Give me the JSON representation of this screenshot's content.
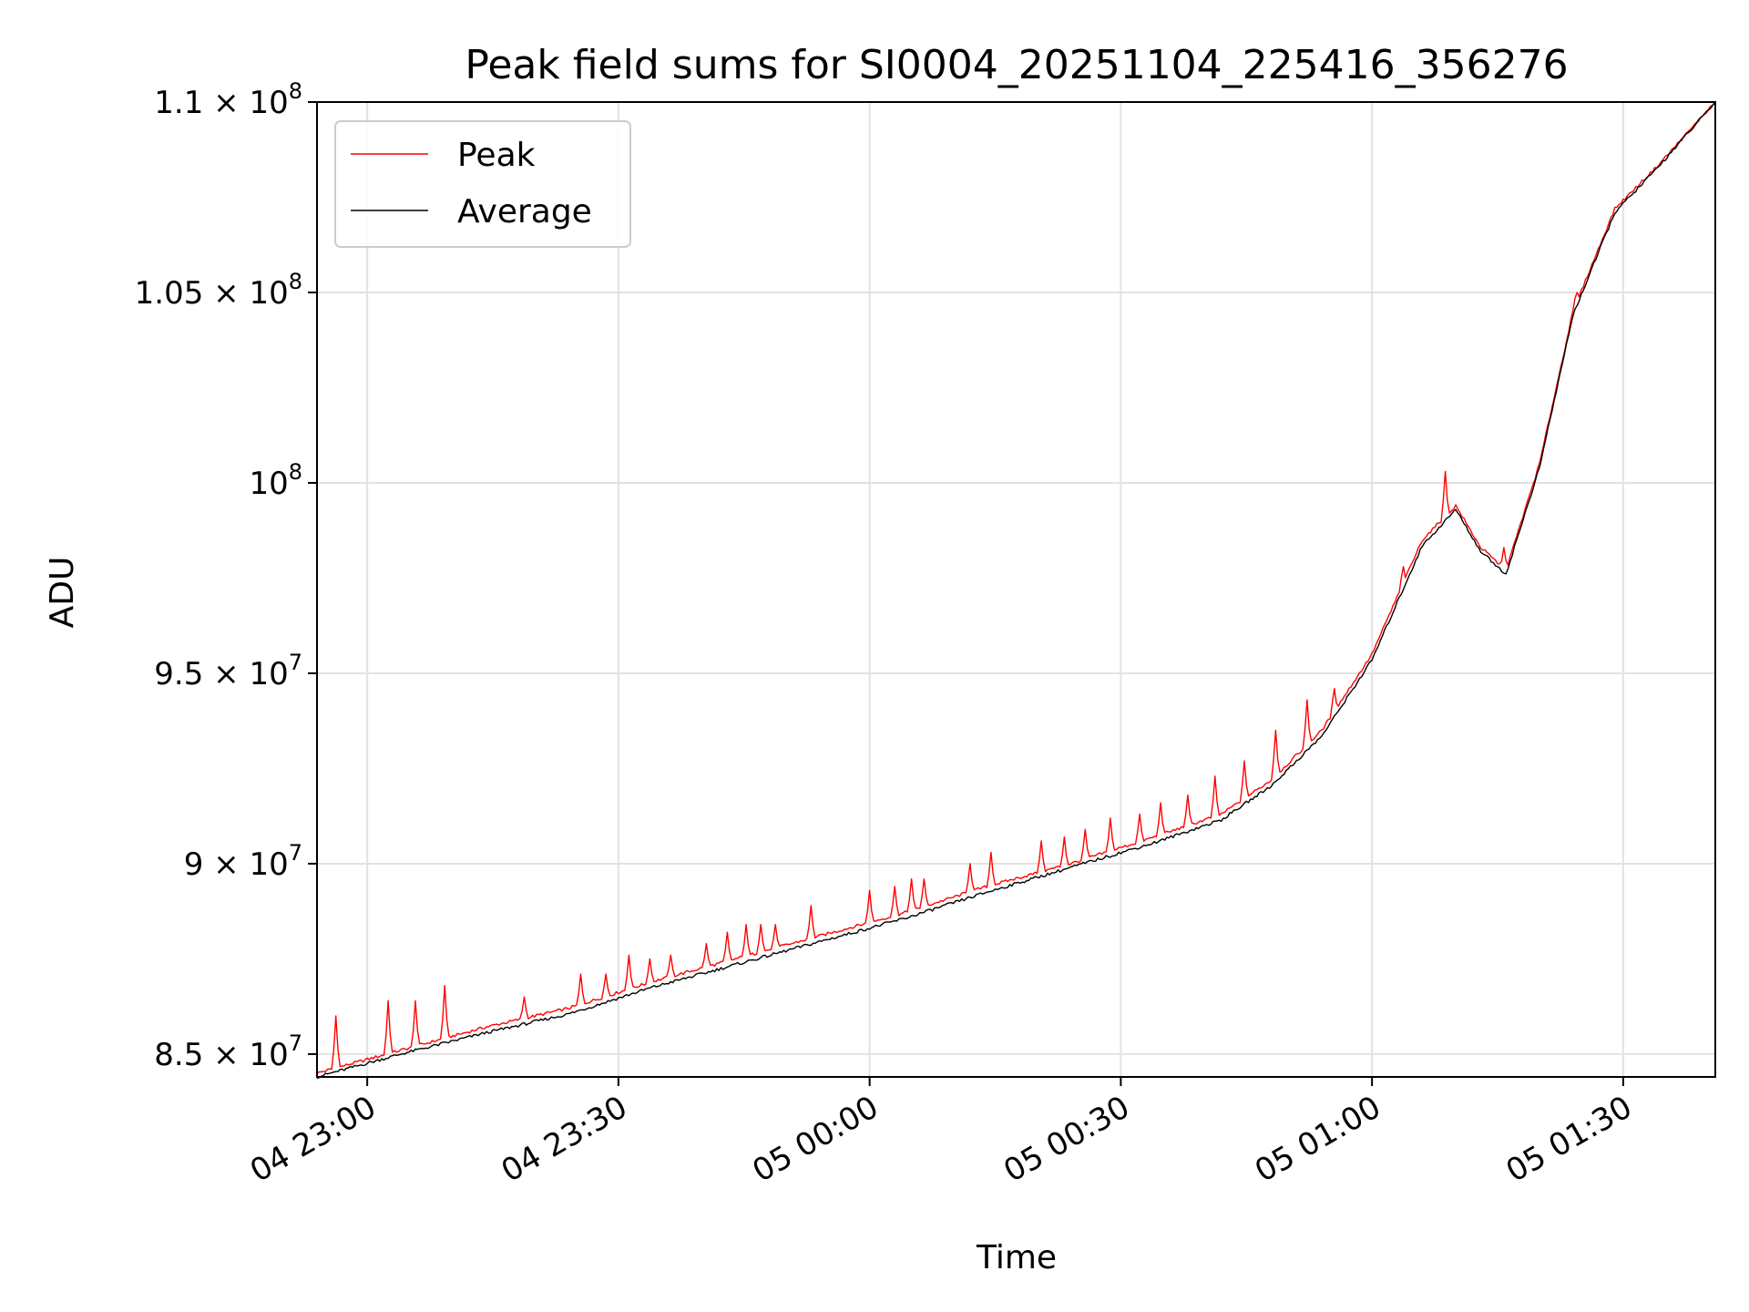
{
  "chart_data": {
    "type": "line",
    "title": "Peak field sums for SI0004_20251104_225416_356276",
    "xlabel": "Time",
    "ylabel": "ADU",
    "x_unit": "minutes after 04 22:54",
    "xlim": [
      0,
      167
    ],
    "ylim": [
      84400000,
      110000000
    ],
    "grid": true,
    "legend_position": "top-left",
    "x_ticks": [
      {
        "value": 6,
        "label": "04 23:00"
      },
      {
        "value": 36,
        "label": "04 23:30"
      },
      {
        "value": 66,
        "label": "05 00:00"
      },
      {
        "value": 96,
        "label": "05 00:30"
      },
      {
        "value": 126,
        "label": "05 01:00"
      },
      {
        "value": 156,
        "label": "05 01:30"
      }
    ],
    "y_ticks": [
      {
        "value": 85000000,
        "label": "8.5 × 10",
        "exp": "7"
      },
      {
        "value": 90000000,
        "label": "9 × 10",
        "exp": "7"
      },
      {
        "value": 95000000,
        "label": "9.5 × 10",
        "exp": "7"
      },
      {
        "value": 100000000,
        "label": "10",
        "exp": "8"
      },
      {
        "value": 105000000,
        "label": "1.05 × 10",
        "exp": "8"
      },
      {
        "value": 110000000,
        "label": "1.1 × 10",
        "exp": "8"
      }
    ],
    "series": [
      {
        "name": "Peak",
        "color": "#ff0000",
        "x": [
          0,
          10,
          20,
          30,
          40,
          50,
          60,
          70,
          80,
          90,
          100,
          108,
          114,
          120,
          126,
          132,
          136,
          139,
          142,
          146,
          150,
          155,
          160,
          167
        ],
        "y": [
          84500000,
          85100000,
          85700000,
          86200000,
          86900000,
          87500000,
          88100000,
          88700000,
          89400000,
          90000000,
          90700000,
          91300000,
          92200000,
          93500000,
          95500000,
          98500000,
          99400000,
          98300000,
          97700000,
          100500000,
          104500000,
          107200000,
          108300000,
          110000000
        ],
        "spikes": [
          {
            "x": 2.3,
            "y": 86000000
          },
          {
            "x": 8.5,
            "y": 86400000
          },
          {
            "x": 11.7,
            "y": 86400000
          },
          {
            "x": 15.3,
            "y": 86800000
          },
          {
            "x": 24.8,
            "y": 86500000
          },
          {
            "x": 31.5,
            "y": 87100000
          },
          {
            "x": 34.5,
            "y": 87100000
          },
          {
            "x": 37.2,
            "y": 87600000
          },
          {
            "x": 39.7,
            "y": 87500000
          },
          {
            "x": 42.2,
            "y": 87600000
          },
          {
            "x": 46.5,
            "y": 87900000
          },
          {
            "x": 49.0,
            "y": 88200000
          },
          {
            "x": 51.2,
            "y": 88400000
          },
          {
            "x": 53.0,
            "y": 88400000
          },
          {
            "x": 54.7,
            "y": 88400000
          },
          {
            "x": 59.0,
            "y": 88900000
          },
          {
            "x": 66.0,
            "y": 89300000
          },
          {
            "x": 69.0,
            "y": 89400000
          },
          {
            "x": 71.0,
            "y": 89600000
          },
          {
            "x": 72.6,
            "y": 89600000
          },
          {
            "x": 78.0,
            "y": 90000000
          },
          {
            "x": 80.4,
            "y": 90300000
          },
          {
            "x": 86.5,
            "y": 90600000
          },
          {
            "x": 89.2,
            "y": 90700000
          },
          {
            "x": 91.8,
            "y": 90900000
          },
          {
            "x": 94.7,
            "y": 91200000
          },
          {
            "x": 98.3,
            "y": 91300000
          },
          {
            "x": 100.8,
            "y": 91600000
          },
          {
            "x": 103.9,
            "y": 91800000
          },
          {
            "x": 107.3,
            "y": 92300000
          },
          {
            "x": 110.8,
            "y": 92700000
          },
          {
            "x": 114.5,
            "y": 93500000
          },
          {
            "x": 118.2,
            "y": 94300000
          },
          {
            "x": 121.5,
            "y": 94600000
          },
          {
            "x": 129.7,
            "y": 97800000
          },
          {
            "x": 134.7,
            "y": 100300000
          },
          {
            "x": 141.7,
            "y": 98300000
          },
          {
            "x": 150.5,
            "y": 105000000
          }
        ]
      },
      {
        "name": "Average",
        "color": "#000000",
        "x": [
          0,
          10,
          20,
          30,
          40,
          50,
          60,
          70,
          80,
          90,
          100,
          108,
          114,
          120,
          126,
          132,
          136,
          139,
          142,
          146,
          150,
          155,
          160,
          167
        ],
        "y": [
          84400000,
          85000000,
          85550000,
          86050000,
          86750000,
          87350000,
          87950000,
          88550000,
          89250000,
          89900000,
          90550000,
          91150000,
          92050000,
          93350000,
          95350000,
          98350000,
          99300000,
          98200000,
          97600000,
          100400000,
          104400000,
          107100000,
          108250000,
          110000000
        ]
      }
    ]
  }
}
